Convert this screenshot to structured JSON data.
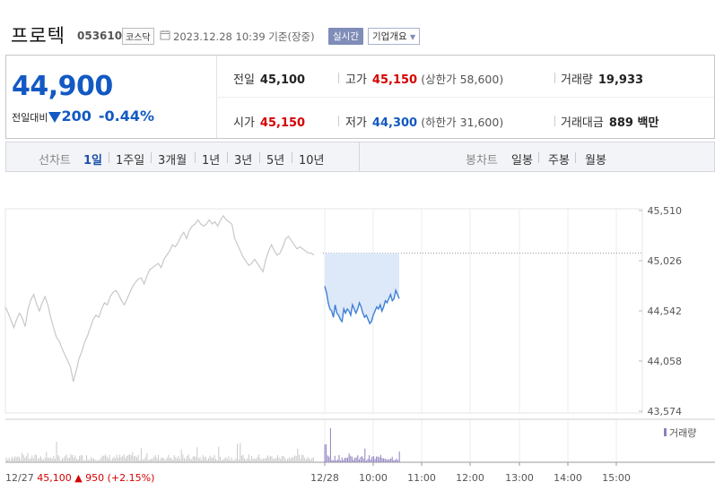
{
  "header": {
    "name": "프로텍",
    "code": "053610",
    "market": "코스닥",
    "datetime": "2023.12.28 10:39 기준(장중)",
    "realtime_label": "실시간",
    "company_label": "기업개요"
  },
  "summary": {
    "price": "44,900",
    "change_label": "전일대비",
    "change_amount": "200",
    "change_pct": "-0.44%",
    "prev_close_label": "전일",
    "prev_close": "45,100",
    "high_label": "고가",
    "high": "45,150",
    "upper_limit": "(상한가 58,600)",
    "volume_label": "거래량",
    "volume": "19,933",
    "open_label": "시가",
    "open": "45,150",
    "low_label": "저가",
    "low": "44,300",
    "lower_limit": "(하한가 31,600)",
    "value_label": "거래대금",
    "value": "889 백만"
  },
  "tabs": {
    "line_label": "선차트",
    "line_periods": [
      "1일",
      "1주일",
      "3개월",
      "1년",
      "3년",
      "5년",
      "10년"
    ],
    "active": "1일",
    "candle_label": "봉차트",
    "candle_periods": [
      "일봉",
      "주봉",
      "월봉"
    ]
  },
  "chart_data": {
    "type": "line",
    "y_ticks": [
      "45,510",
      "45,026",
      "44,542",
      "44,058",
      "43,574"
    ],
    "ylim": [
      43574,
      45510
    ],
    "x_ticks": [
      "12/28",
      "10:00",
      "11:00",
      "12:00",
      "13:00",
      "14:00",
      "15:00"
    ],
    "volume_legend": "거래량",
    "prev_day_footer": {
      "date": "12/27",
      "price": "45,100",
      "change": "950",
      "pct": "(+2.15%)"
    },
    "colors": {
      "prev_line": "#c8c8c8",
      "today_line": "#3f7fd6",
      "today_fill": "#dde9f8",
      "volume": "#8e7fbf",
      "ref_line": "#999999"
    },
    "prev_close_ref": 45100,
    "series": [
      {
        "values": [
          44580,
          44520,
          44450,
          44380,
          44460,
          44520,
          44470,
          44390,
          44560,
          44650,
          44700,
          44610,
          44540,
          44620,
          44680,
          44600,
          44480,
          44380,
          44290,
          44250,
          44180,
          44120,
          44060,
          44000,
          43860,
          43960,
          44080,
          44150,
          44240,
          44300,
          44380,
          44460,
          44500,
          44480,
          44560,
          44620,
          44600,
          44680,
          44720,
          44740,
          44700,
          44640,
          44600,
          44660,
          44720,
          44780,
          44820,
          44850,
          44860,
          44800,
          44880,
          44940,
          44960,
          44980,
          45000,
          44960,
          45040,
          45080,
          45120,
          45180,
          45160,
          45200,
          45260,
          45300,
          45240,
          45320,
          45360,
          45380,
          45420,
          45380,
          45360,
          45380,
          45420,
          45380,
          45400,
          45360,
          45420,
          45460,
          45420,
          45400,
          45380,
          45240,
          45180,
          45120,
          45060,
          45020,
          44980,
          45000,
          45040,
          45000,
          44960,
          44920,
          45040,
          45120,
          45180,
          45120,
          45080,
          45100,
          45160,
          45240,
          45260,
          45220,
          45180,
          45140,
          45160,
          45140,
          45120,
          45100,
          45100,
          45080
        ]
      },
      {
        "values": [
          44780,
          44720,
          44620,
          44560,
          44540,
          44480,
          44600,
          44520,
          44500,
          44460,
          44440,
          44560,
          44520,
          44560,
          44540,
          44500,
          44600,
          44560,
          44520,
          44560,
          44620,
          44580,
          44520,
          44480,
          44500,
          44460,
          44420,
          44440,
          44500,
          44540,
          44580,
          44560,
          44600,
          44540,
          44580,
          44640,
          44620,
          44660,
          44700,
          44640,
          44660,
          44740,
          44700,
          44660
        ]
      }
    ]
  }
}
